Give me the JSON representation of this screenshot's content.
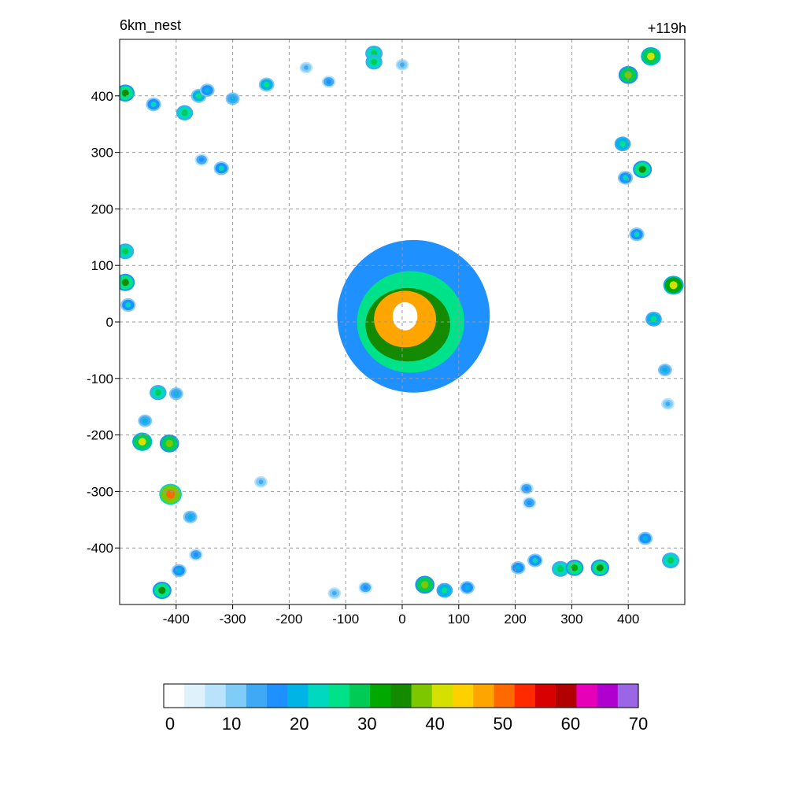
{
  "header": {
    "left_label": "6km_nest",
    "right_label": "+119h"
  },
  "chart_data": {
    "type": "heatmap",
    "title": "",
    "xlabel": "",
    "ylabel": "",
    "xlim": [
      -500,
      500
    ],
    "ylim": [
      -500,
      500
    ],
    "x_ticks": [
      -400,
      -300,
      -200,
      -100,
      0,
      100,
      200,
      300,
      400
    ],
    "y_ticks": [
      -400,
      -300,
      -200,
      -100,
      0,
      100,
      200,
      300,
      400
    ],
    "grid": true,
    "colorbar": {
      "orientation": "horizontal",
      "placement": "bottom",
      "range": [
        0,
        70
      ],
      "ticks": [
        0,
        10,
        20,
        30,
        40,
        50,
        60,
        70
      ],
      "colors": [
        "#ffffff",
        "#dff2fb",
        "#b8e3fa",
        "#80ccf8",
        "#3fa9f5",
        "#1e90ff",
        "#00b4e6",
        "#00d8c0",
        "#00e28a",
        "#00cc55",
        "#00a800",
        "#138a00",
        "#7cc700",
        "#d6e000",
        "#ffd000",
        "#ffa500",
        "#ff6a00",
        "#ff2a00",
        "#d80000",
        "#b00000",
        "#e600b8",
        "#b000d0",
        "#9a66e6"
      ]
    },
    "fields": [
      {
        "name": "storm-outer",
        "x": 20,
        "y": 10,
        "rx": 135,
        "ry": 135,
        "value": 15
      },
      {
        "name": "storm-mid",
        "x": 15,
        "y": 0,
        "rx": 95,
        "ry": 90,
        "value": 25
      },
      {
        "name": "storm-inner",
        "x": 10,
        "y": -5,
        "rx": 75,
        "ry": 65,
        "value": 35
      },
      {
        "name": "eyewall",
        "x": 5,
        "y": 5,
        "rx": 55,
        "ry": 50,
        "value": 48
      },
      {
        "name": "eye",
        "x": 5,
        "y": 10,
        "rx": 22,
        "ry": 25,
        "value": 0
      }
    ],
    "cells": [
      {
        "x": -490,
        "y": 405,
        "value": 35
      },
      {
        "x": -440,
        "y": 385,
        "value": 22
      },
      {
        "x": -385,
        "y": 370,
        "value": 28
      },
      {
        "x": -360,
        "y": 400,
        "value": 24
      },
      {
        "x": -345,
        "y": 410,
        "value": 20
      },
      {
        "x": -300,
        "y": 395,
        "value": 18
      },
      {
        "x": -240,
        "y": 420,
        "value": 24
      },
      {
        "x": -170,
        "y": 450,
        "value": 14
      },
      {
        "x": -130,
        "y": 425,
        "value": 16
      },
      {
        "x": -50,
        "y": 475,
        "value": 30
      },
      {
        "x": -50,
        "y": 460,
        "value": 28
      },
      {
        "x": 0,
        "y": 455,
        "value": 14
      },
      {
        "x": -355,
        "y": 287,
        "value": 16
      },
      {
        "x": -320,
        "y": 272,
        "value": 22
      },
      {
        "x": 400,
        "y": 437,
        "value": 38
      },
      {
        "x": 440,
        "y": 470,
        "value": 40
      },
      {
        "x": 390,
        "y": 315,
        "value": 26
      },
      {
        "x": 425,
        "y": 270,
        "value": 36
      },
      {
        "x": 395,
        "y": 255,
        "value": 22
      },
      {
        "x": 415,
        "y": 155,
        "value": 22
      },
      {
        "x": 480,
        "y": 65,
        "value": 42
      },
      {
        "x": 445,
        "y": 5,
        "value": 26
      },
      {
        "x": 465,
        "y": -85,
        "value": 18
      },
      {
        "x": 470,
        "y": -145,
        "value": 14
      },
      {
        "x": -490,
        "y": 125,
        "value": 30
      },
      {
        "x": -490,
        "y": 70,
        "value": 36
      },
      {
        "x": -485,
        "y": 30,
        "value": 22
      },
      {
        "x": -432,
        "y": -125,
        "value": 28
      },
      {
        "x": -400,
        "y": -127,
        "value": 18
      },
      {
        "x": -455,
        "y": -175,
        "value": 18
      },
      {
        "x": -460,
        "y": -212,
        "value": 40
      },
      {
        "x": -412,
        "y": -215,
        "value": 38
      },
      {
        "x": -410,
        "y": -305,
        "value": 50
      },
      {
        "x": -375,
        "y": -345,
        "value": 18
      },
      {
        "x": -365,
        "y": -412,
        "value": 16
      },
      {
        "x": -395,
        "y": -440,
        "value": 20
      },
      {
        "x": -425,
        "y": -475,
        "value": 36
      },
      {
        "x": -250,
        "y": -283,
        "value": 14
      },
      {
        "x": -120,
        "y": -480,
        "value": 14
      },
      {
        "x": -65,
        "y": -470,
        "value": 16
      },
      {
        "x": 40,
        "y": -465,
        "value": 38
      },
      {
        "x": 75,
        "y": -475,
        "value": 26
      },
      {
        "x": 115,
        "y": -470,
        "value": 20
      },
      {
        "x": 220,
        "y": -295,
        "value": 16
      },
      {
        "x": 225,
        "y": -320,
        "value": 16
      },
      {
        "x": 205,
        "y": -435,
        "value": 20
      },
      {
        "x": 235,
        "y": -422,
        "value": 22
      },
      {
        "x": 280,
        "y": -437,
        "value": 30
      },
      {
        "x": 305,
        "y": -435,
        "value": 32
      },
      {
        "x": 350,
        "y": -435,
        "value": 34
      },
      {
        "x": 430,
        "y": -383,
        "value": 20
      },
      {
        "x": 475,
        "y": -422,
        "value": 30
      }
    ]
  }
}
